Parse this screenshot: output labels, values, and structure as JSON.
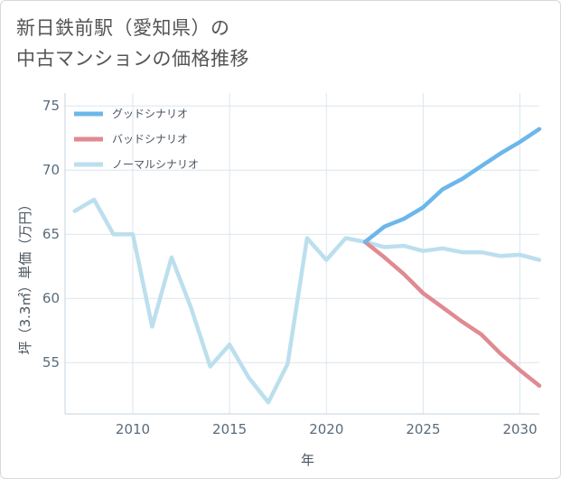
{
  "title_lines": [
    "新日鉄前駅（愛知県）の",
    "中古マンションの価格推移"
  ],
  "chart_data": {
    "type": "line",
    "xlabel": "年",
    "ylabel": "坪（3.3㎡）単価（万円）",
    "xlim": [
      2006.5,
      2031
    ],
    "ylim": [
      51,
      76
    ],
    "xticks": [
      2010,
      2015,
      2020,
      2025,
      2030
    ],
    "yticks": [
      55,
      60,
      65,
      70,
      75
    ],
    "grid": true,
    "legend_position": "top-left",
    "series": [
      {
        "name": "グッドシナリオ",
        "color": "#6cb7ea",
        "x": [
          2022,
          2023,
          2024,
          2025,
          2026,
          2027,
          2028,
          2029,
          2030,
          2031
        ],
        "values": [
          64.4,
          65.6,
          66.2,
          67.1,
          68.5,
          69.3,
          70.3,
          71.3,
          72.2,
          73.2
        ]
      },
      {
        "name": "バッドシナリオ",
        "color": "#e08a92",
        "x": [
          2022,
          2023,
          2024,
          2025,
          2026,
          2027,
          2028,
          2029,
          2030,
          2031
        ],
        "values": [
          64.4,
          63.2,
          61.9,
          60.4,
          59.3,
          58.2,
          57.2,
          55.7,
          54.4,
          53.2
        ]
      },
      {
        "name": "ノーマルシナリオ",
        "color": "#bcdfee",
        "x": [
          2007,
          2008,
          2009,
          2010,
          2011,
          2012,
          2013,
          2014,
          2015,
          2016,
          2017,
          2018,
          2019,
          2020,
          2021,
          2022,
          2023,
          2024,
          2025,
          2026,
          2027,
          2028,
          2029,
          2030,
          2031
        ],
        "values": [
          66.8,
          67.7,
          65.0,
          65.0,
          57.8,
          63.2,
          59.3,
          54.7,
          56.4,
          53.8,
          51.9,
          54.9,
          64.7,
          63.0,
          64.7,
          64.4,
          64.0,
          64.1,
          63.7,
          63.9,
          63.6,
          63.6,
          63.3,
          63.4,
          63.0
        ]
      }
    ]
  }
}
